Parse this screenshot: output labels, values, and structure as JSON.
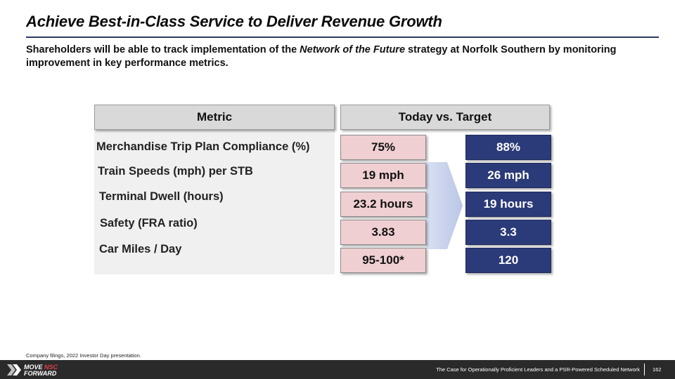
{
  "title": "Achieve Best-in-Class Service to Deliver Revenue Growth",
  "subtitle": {
    "before": "Shareholders will be able to track implementation of the ",
    "emphasis": "Network of the Future",
    "after": " strategy at Norfolk Southern by monitoring improvement in key performance metrics."
  },
  "table": {
    "header_metric": "Metric",
    "header_today_target": "Today vs. Target",
    "rows": [
      {
        "metric": "Merchandise Trip Plan Compliance (%)",
        "today": "75%",
        "target": "88%"
      },
      {
        "metric": "Train Speeds (mph) per STB",
        "today": "19 mph",
        "target": "26 mph"
      },
      {
        "metric": "Terminal Dwell (hours)",
        "today": "23.2 hours",
        "target": "19 hours"
      },
      {
        "metric": "Safety (FRA ratio)",
        "today": "3.83",
        "target": "3.3"
      },
      {
        "metric": "Car Miles / Day",
        "today": "95-100*",
        "target": "120"
      }
    ]
  },
  "colors": {
    "today_fill": "#f0cfd2",
    "target_fill": "#2b3a78",
    "header_fill": "#d9d9d9",
    "arrow_fill": "#c5d0ea"
  },
  "footnote": "Company filings, 2022 Investor Day presentation.",
  "footer": {
    "logo_line1": "MOVE",
    "logo_line1_accent": "NSC",
    "logo_line2": "FORWARD",
    "text": "The Case for Operationally Proficient Leaders and a PSR-Powered Scheduled Network",
    "page_number": "162"
  }
}
